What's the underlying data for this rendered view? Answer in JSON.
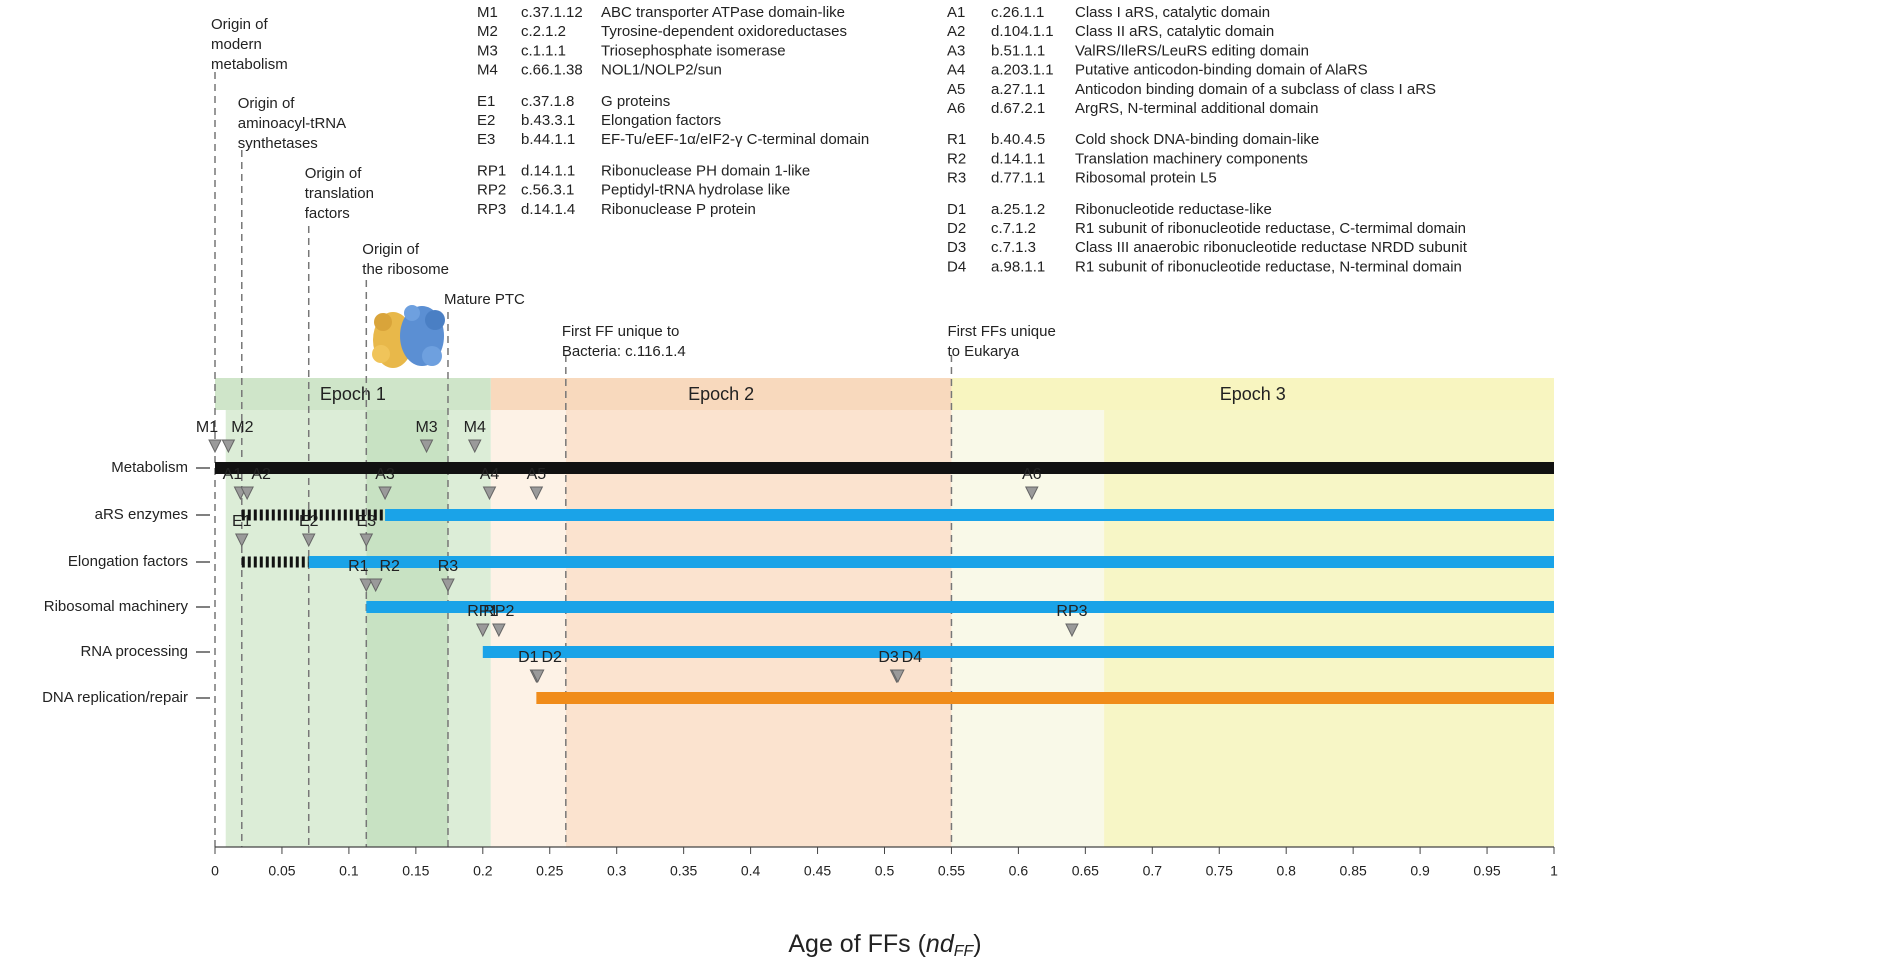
{
  "chart_data": {
    "type": "timeline",
    "xlabel": {
      "text": "Age of FFs (",
      "italic": "nd",
      "sub": "FF",
      "close": ")"
    },
    "xlim": [
      0,
      1
    ],
    "xticks": [
      0,
      0.05,
      0.1,
      0.15,
      0.2,
      0.25,
      0.3,
      0.35,
      0.4,
      0.45,
      0.5,
      0.55,
      0.6,
      0.65,
      0.7,
      0.75,
      0.8,
      0.85,
      0.9,
      0.95,
      1
    ],
    "epochs": [
      {
        "name": "Epoch 1",
        "from": 0,
        "to": 0.206,
        "color": "#cfe5c9"
      },
      {
        "name": "Epoch 2",
        "from": 0.206,
        "to": 0.55,
        "color": "#f8d9bd"
      },
      {
        "name": "Epoch 3",
        "from": 0.55,
        "to": 1,
        "color": "#f8f5c0"
      }
    ],
    "shading": [
      {
        "from": 0.008,
        "to": 0.113,
        "color": "#dcedd7"
      },
      {
        "from": 0.113,
        "to": 0.174,
        "color": "#c8e2c3"
      },
      {
        "from": 0.174,
        "to": 0.206,
        "color": "#dcedd7"
      },
      {
        "from": 0.206,
        "to": 0.262,
        "color": "#fdf2e6"
      },
      {
        "from": 0.262,
        "to": 0.55,
        "color": "#fbe3cf"
      },
      {
        "from": 0.55,
        "to": 0.664,
        "color": "#f9f9e8"
      },
      {
        "from": 0.664,
        "to": 1,
        "color": "#f7f6c6"
      }
    ],
    "events": [
      {
        "value": 0,
        "label": [
          "Origin of",
          "modern",
          "metabolism"
        ]
      },
      {
        "value": 0.02,
        "label": [
          "Origin of",
          "aminoacyl-tRNA",
          "synthetases"
        ]
      },
      {
        "value": 0.07,
        "label": [
          "Origin of",
          "translation",
          "factors"
        ]
      },
      {
        "value": 0.113,
        "label": [
          "Origin of",
          "the ribosome"
        ]
      },
      {
        "value": 0.174,
        "label": [
          "Mature PTC"
        ]
      },
      {
        "value": 0.262,
        "label": [
          "First FF unique to",
          "Bacteria: c.116.1.4"
        ]
      },
      {
        "value": 0.55,
        "label": [
          "First FFs unique",
          "to Eukarya"
        ]
      }
    ],
    "series": [
      {
        "name": "Metabolism",
        "color": "#111111",
        "dashed": null,
        "span": [
          0,
          1
        ],
        "markers": [
          {
            "label": "M1",
            "value": 0
          },
          {
            "label": "M2",
            "value": 0.01
          },
          {
            "label": "M3",
            "value": 0.158
          },
          {
            "label": "M4",
            "value": 0.194
          }
        ]
      },
      {
        "name": "aRS enzymes",
        "color": "#1aa3e8",
        "dashed": [
          0.02,
          0.127
        ],
        "span": [
          0.127,
          1
        ],
        "markers": [
          {
            "label": "A1",
            "value": 0.019
          },
          {
            "label": "A2",
            "value": 0.024
          },
          {
            "label": "A3",
            "value": 0.127
          },
          {
            "label": "A4",
            "value": 0.205
          },
          {
            "label": "A5",
            "value": 0.24
          },
          {
            "label": "A6",
            "value": 0.61
          }
        ]
      },
      {
        "name": "Elongation factors",
        "color": "#1aa3e8",
        "dashed": [
          0.02,
          0.07
        ],
        "span": [
          0.07,
          1
        ],
        "markers": [
          {
            "label": "E1",
            "value": 0.02
          },
          {
            "label": "E2",
            "value": 0.07
          },
          {
            "label": "E3",
            "value": 0.113
          }
        ]
      },
      {
        "name": "Ribosomal machinery",
        "color": "#1aa3e8",
        "dashed": null,
        "span": [
          0.113,
          1
        ],
        "markers": [
          {
            "label": "R1",
            "value": 0.113
          },
          {
            "label": "R2",
            "value": 0.12
          },
          {
            "label": "R3",
            "value": 0.174
          }
        ]
      },
      {
        "name": "RNA processing",
        "color": "#1aa3e8",
        "dashed": null,
        "span": [
          0.2,
          1
        ],
        "markers": [
          {
            "label": "RP1",
            "value": 0.2
          },
          {
            "label": "RP2",
            "value": 0.212
          },
          {
            "label": "RP3",
            "value": 0.64
          }
        ]
      },
      {
        "name": "DNA replication/repair",
        "color": "#f08c1a",
        "dashed": null,
        "span": [
          0.24,
          1
        ],
        "markers": [
          {
            "label": "D1",
            "value": 0.24
          },
          {
            "label": "D2",
            "value": 0.241
          },
          {
            "label": "D3",
            "value": 0.509
          },
          {
            "label": "D4",
            "value": 0.51
          }
        ]
      }
    ],
    "legend_left": [
      [
        [
          "M1",
          "c.37.1.12",
          "ABC transporter ATPase domain-like"
        ],
        [
          "M2",
          "c.2.1.2",
          "Tyrosine-dependent oxidoreductases"
        ],
        [
          "M3",
          "c.1.1.1",
          "Triosephosphate isomerase"
        ],
        [
          "M4",
          "c.66.1.38",
          "NOL1/NOLP2/sun"
        ]
      ],
      [
        [
          "E1",
          "c.37.1.8",
          "G proteins"
        ],
        [
          "E2",
          "b.43.3.1",
          "Elongation factors"
        ],
        [
          "E3",
          "b.44.1.1",
          "EF-Tu/eEF-1α/eIF2-γ C-terminal domain"
        ]
      ],
      [
        [
          "RP1",
          "d.14.1.1",
          "Ribonuclease PH domain 1-like"
        ],
        [
          "RP2",
          "c.56.3.1",
          "Peptidyl-tRNA hydrolase like"
        ],
        [
          "RP3",
          "d.14.1.4",
          "Ribonuclease P protein"
        ]
      ]
    ],
    "legend_right": [
      [
        [
          "A1",
          "c.26.1.1",
          "Class I aRS, catalytic domain"
        ],
        [
          "A2",
          "d.104.1.1",
          "Class II aRS, catalytic domain"
        ],
        [
          "A3",
          "b.51.1.1",
          "ValRS/IleRS/LeuRS editing domain"
        ],
        [
          "A4",
          "a.203.1.1",
          "Putative anticodon-binding domain of AlaRS"
        ],
        [
          "A5",
          "a.27.1.1",
          "Anticodon binding domain of a subclass of class I aRS"
        ],
        [
          "A6",
          "d.67.2.1",
          "ArgRS, N-terminal additional domain"
        ]
      ],
      [
        [
          "R1",
          "b.40.4.5",
          "Cold shock DNA-binding domain-like"
        ],
        [
          "R2",
          "d.14.1.1",
          "Translation machinery components"
        ],
        [
          "R3",
          "d.77.1.1",
          "Ribosomal protein L5"
        ]
      ],
      [
        [
          "D1",
          "a.25.1.2",
          "Ribonucleotide reductase-like"
        ],
        [
          "D2",
          "c.7.1.2",
          "R1 subunit of ribonucleotide reductase, C-termimal domain"
        ],
        [
          "D3",
          "c.7.1.3",
          "Class III anaerobic ribonucleotide reductase NRDD subunit"
        ],
        [
          "D4",
          "a.98.1.1",
          "R1 subunit of ribonucleotide reductase, N-terminal domain"
        ]
      ]
    ]
  }
}
